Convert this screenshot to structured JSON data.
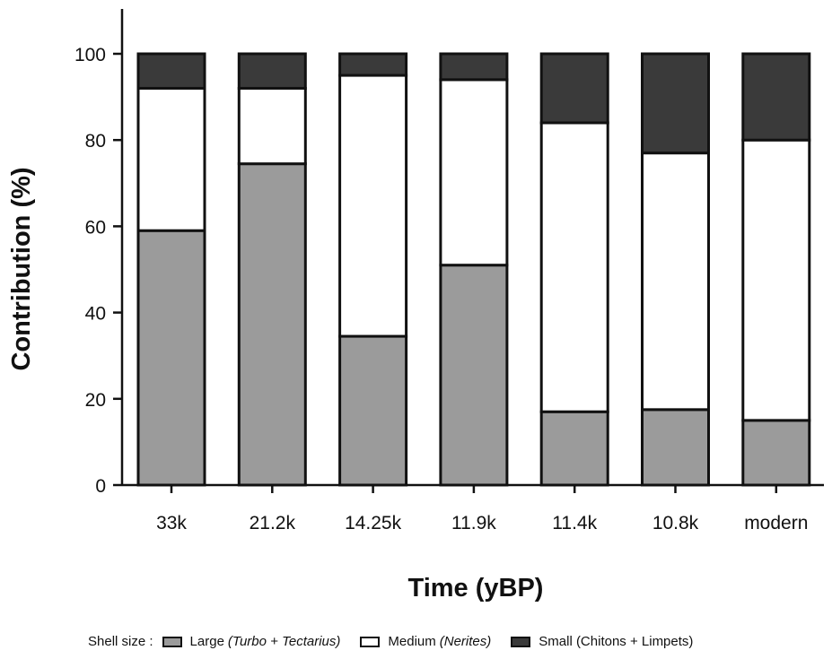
{
  "chart_data": {
    "type": "bar",
    "stacked": true,
    "xlabel": "Time (yBP)",
    "ylabel": "Contribution (%)",
    "ylim": [
      0,
      100
    ],
    "yticks": [
      0,
      20,
      40,
      60,
      80,
      100
    ],
    "grid": false,
    "categories": [
      "33k",
      "21.2k",
      "14.25k",
      "11.9k",
      "11.4k",
      "10.8k",
      "modern"
    ],
    "series": [
      {
        "name": "Large",
        "color": "#9b9b9b",
        "values": [
          59,
          74.5,
          34.5,
          51,
          17,
          17.5,
          15
        ]
      },
      {
        "name": "Medium",
        "color": "#ffffff",
        "values": [
          33,
          17.5,
          60.5,
          43,
          67,
          59.5,
          65
        ]
      },
      {
        "name": "Small",
        "color": "#3a3a3a",
        "values": [
          8,
          8,
          5,
          6,
          16,
          23,
          20
        ]
      }
    ]
  },
  "legend": {
    "title": "Shell size :",
    "items": [
      {
        "label": "Large",
        "note": "(Turbo + Tectarius)",
        "color": "#9b9b9b"
      },
      {
        "label": "Medium",
        "note": "(Nerites)",
        "color": "#ffffff"
      },
      {
        "label": "Small (Chitons + Limpets)",
        "note": "",
        "color": "#3a3a3a"
      }
    ]
  }
}
